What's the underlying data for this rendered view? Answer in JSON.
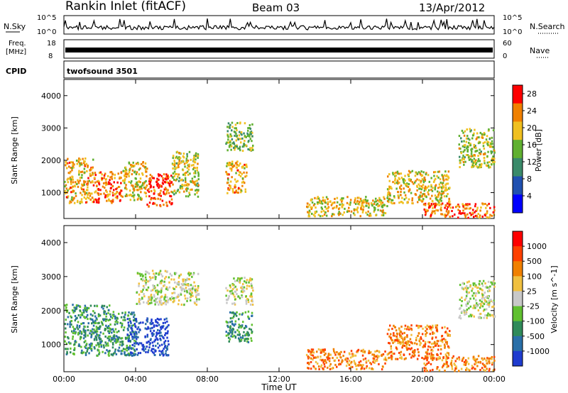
{
  "header": {
    "station": "Rankin Inlet (fitACF)",
    "beam": "Beam 03",
    "date": "13/Apr/2012"
  },
  "panels": {
    "nsky": {
      "label": "N.Sky",
      "ticks": [
        "10^5",
        "10^0"
      ]
    },
    "nsearch": {
      "label": "N.Search",
      "ticks": [
        "10^5",
        "10^0"
      ]
    },
    "freq": {
      "label_line1": "Freq.",
      "label_line2": "[MHz]",
      "ticks": [
        "18",
        "8"
      ]
    },
    "nave": {
      "label": "Nave",
      "ticks": [
        "60",
        "0"
      ]
    },
    "cpid": {
      "label": "CPID",
      "value": "twofsound 3501"
    }
  },
  "chart_data": [
    {
      "type": "heatmap",
      "name": "power",
      "ylabel": "Slant Range [km]",
      "xlabel": "",
      "yticks": [
        "1000",
        "2000",
        "3000",
        "4000"
      ],
      "ylim": [
        200,
        4500
      ],
      "xlim": [
        "00:00",
        "24:00"
      ],
      "colorbar": {
        "label": "Power [dB]",
        "ticks": [
          "4",
          "8",
          "12",
          "16",
          "20",
          "24",
          "28"
        ],
        "range": [
          0,
          30
        ],
        "colors": [
          "#0000ff",
          "#2050b0",
          "#3a8a6a",
          "#60b030",
          "#f0c020",
          "#f08000",
          "#ff0000"
        ]
      },
      "scatter_regions": [
        {
          "t": [
            0.0,
            1.6
          ],
          "r": [
            700,
            2100
          ],
          "value": 22
        },
        {
          "t": [
            1.6,
            3.2
          ],
          "r": [
            700,
            1700
          ],
          "value": 26
        },
        {
          "t": [
            3.2,
            4.6
          ],
          "r": [
            800,
            2000
          ],
          "value": 20
        },
        {
          "t": [
            4.6,
            6.0
          ],
          "r": [
            600,
            1600
          ],
          "value": 28
        },
        {
          "t": [
            6.0,
            7.5
          ],
          "r": [
            900,
            2300
          ],
          "value": 18
        },
        {
          "t": [
            9.0,
            10.2
          ],
          "r": [
            1000,
            2000
          ],
          "value": 22
        },
        {
          "t": [
            9.0,
            10.5
          ],
          "r": [
            2300,
            3200
          ],
          "value": 14
        },
        {
          "t": [
            13.5,
            18.0
          ],
          "r": [
            300,
            900
          ],
          "value": 20
        },
        {
          "t": [
            18.0,
            21.5
          ],
          "r": [
            700,
            1700
          ],
          "value": 20
        },
        {
          "t": [
            20.0,
            24.0
          ],
          "r": [
            250,
            700
          ],
          "value": 26
        },
        {
          "t": [
            22.0,
            24.0
          ],
          "r": [
            1800,
            3000
          ],
          "value": 18
        }
      ]
    },
    {
      "type": "heatmap",
      "name": "velocity",
      "ylabel": "Slant Range [km]",
      "xlabel": "Time UT",
      "xticks": [
        "00:00",
        "04:00",
        "08:00",
        "12:00",
        "16:00",
        "20:00",
        "00:00"
      ],
      "yticks": [
        "1000",
        "2000",
        "3000",
        "4000"
      ],
      "ylim": [
        200,
        4500
      ],
      "colorbar": {
        "label": "Velocity [m s^-1]",
        "ticks": [
          "1000",
          "500",
          "100",
          "25",
          "-25",
          "-100",
          "-500",
          "-1000"
        ],
        "colors": [
          "#1f3ccf",
          "#2a6fa8",
          "#2f8a5a",
          "#60c030",
          "#c8c8c8",
          "#f0c040",
          "#f08000",
          "#ff4000",
          "#ff0000"
        ]
      },
      "scatter_regions": [
        {
          "t": [
            0.0,
            2.5
          ],
          "r": [
            700,
            2200
          ],
          "value": 2
        },
        {
          "t": [
            2.5,
            4.0
          ],
          "r": [
            700,
            2000
          ],
          "value": 2
        },
        {
          "t": [
            3.5,
            5.8
          ],
          "r": [
            700,
            1800
          ],
          "value": 0
        },
        {
          "t": [
            4.0,
            7.5
          ],
          "r": [
            2200,
            3200
          ],
          "value": 4
        },
        {
          "t": [
            9.0,
            10.5
          ],
          "r": [
            2200,
            3000
          ],
          "value": 4
        },
        {
          "t": [
            9.0,
            10.5
          ],
          "r": [
            1100,
            2000
          ],
          "value": 2
        },
        {
          "t": [
            13.5,
            18.0
          ],
          "r": [
            300,
            900
          ],
          "value": 6
        },
        {
          "t": [
            18.0,
            21.5
          ],
          "r": [
            600,
            1600
          ],
          "value": 6
        },
        {
          "t": [
            20.0,
            24.0
          ],
          "r": [
            250,
            700
          ],
          "value": 6
        },
        {
          "t": [
            22.0,
            24.0
          ],
          "r": [
            1800,
            2900
          ],
          "value": 4
        }
      ]
    }
  ]
}
